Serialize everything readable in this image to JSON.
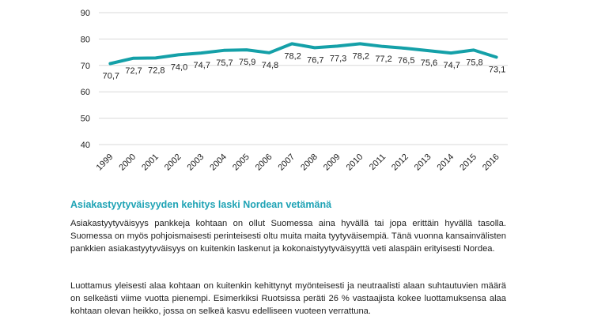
{
  "chart_data": {
    "type": "line",
    "categories": [
      "1999",
      "2000",
      "2001",
      "2002",
      "2003",
      "2004",
      "2005",
      "2006",
      "2007",
      "2008",
      "2009",
      "2010",
      "2011",
      "2012",
      "2013",
      "2014",
      "2015",
      "2016"
    ],
    "series": [
      {
        "values": [
          70.7,
          72.7,
          72.8,
          74.0,
          74.7,
          75.7,
          75.9,
          74.8,
          78.2,
          76.7,
          77.3,
          78.2,
          77.2,
          76.5,
          75.6,
          74.7,
          75.8,
          73.1
        ],
        "labels": [
          "70,7",
          "72,7",
          "72,8",
          "74,0",
          "74,7",
          "75,7",
          "75,9",
          "74,8",
          "78,2",
          "76,7",
          "77,3",
          "78,2",
          "77,2",
          "76,5",
          "75,6",
          "74,7",
          "75,8",
          "73,1"
        ]
      }
    ],
    "ylim": [
      40,
      90
    ],
    "yticks": [
      40,
      50,
      60,
      70,
      80,
      90
    ],
    "grid": true,
    "color": "#14a0a8"
  },
  "text": {
    "heading": "Asiakastyytyväisyyden kehitys laski Nordean vetämänä",
    "paragraph1": "Asiakastyytyväisyys pankkeja kohtaan on ollut Suomessa aina hyvällä tai jopa erittäin hyvällä tasolla. Suomessa on myös pohjoismaisesti perinteisesti oltu muita maita tyytyväisempiä. Tänä vuonna kansainvälisten pankkien asiakastyytyväisyys on kuitenkin laskenut ja kokonaistyytyväisyyttä veti alaspäin erityisesti Nordea.",
    "paragraph2": "Luottamus yleisesti alaa kohtaan on kuitenkin kehittynyt myönteisesti ja neutraalisti alaan suhtautuvien määrä on selkeästi viime vuotta pienempi. Esimerkiksi Ruotsissa peräti 26 % vastaajista kokee luottamuksensa alaa kohtaan olevan heikko, jossa on selkeä kasvu edelliseen vuoteen verrattuna."
  }
}
